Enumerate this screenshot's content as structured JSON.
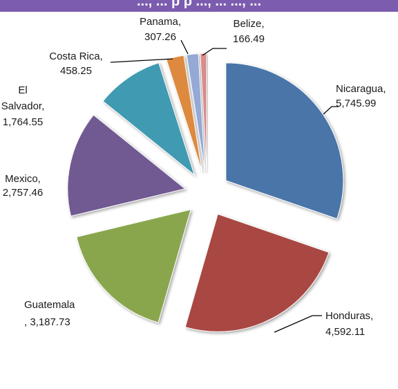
{
  "header": {
    "title_fragment": "..., ... p p ..., ... ..., ..."
  },
  "chart_data": {
    "type": "pie",
    "exploded": true,
    "title": "",
    "slices": [
      {
        "category": "Nicaragua",
        "value": 5745.99,
        "label": [
          "Nicaragua,",
          "5,745.99"
        ],
        "color": "#4a74a8"
      },
      {
        "category": "Honduras",
        "value": 4592.11,
        "label": [
          "Honduras,",
          "4,592.11"
        ],
        "color": "#a94743"
      },
      {
        "category": "Guatemala",
        "value": 3187.73,
        "label": [
          "Guatemala",
          ", 3,187.73"
        ],
        "color": "#8aa64e"
      },
      {
        "category": "Mexico",
        "value": 2757.46,
        "label": [
          "Mexico,",
          "2,757.46"
        ],
        "color": "#6f5a91"
      },
      {
        "category": "El Salvador",
        "value": 1764.55,
        "label": [
          "El",
          "Salvador,",
          "1,764.55"
        ],
        "color": "#3f9ab2"
      },
      {
        "category": "Costa Rica",
        "value": 458.25,
        "label": [
          "Costa Rica,",
          "458.25"
        ],
        "color": "#dd8a3f"
      },
      {
        "category": "Panama",
        "value": 307.26,
        "label": [
          "Panama,",
          "307.26"
        ],
        "color": "#94a9d4"
      },
      {
        "category": "Belize",
        "value": 166.49,
        "label": [
          "Belize,",
          "166.49"
        ],
        "color": "#d98c8b"
      }
    ]
  }
}
